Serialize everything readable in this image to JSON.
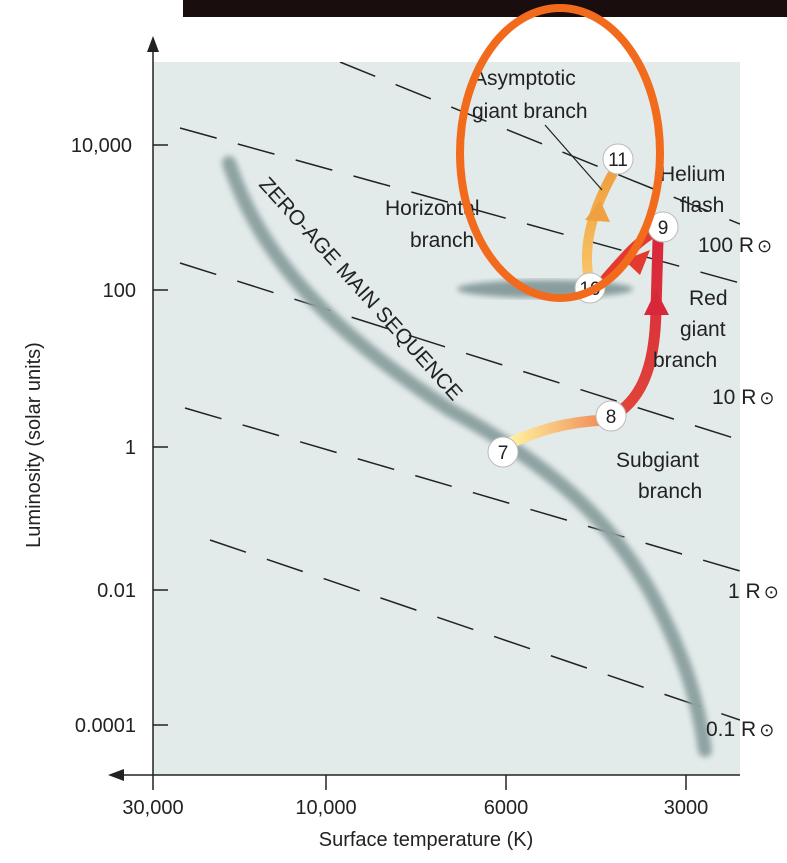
{
  "diagram": {
    "y_axis": {
      "title": "Luminosity (solar units)",
      "ticks": [
        "10,000",
        "100",
        "1",
        "0.01",
        "0.0001"
      ]
    },
    "x_axis": {
      "title": "Surface temperature (K)",
      "ticks": [
        "30,000",
        "10,000",
        "6000",
        "3000"
      ]
    },
    "radius_lines": [
      {
        "label": "100 R",
        "symbol": "⊙"
      },
      {
        "label": "10 R",
        "symbol": "⊙"
      },
      {
        "label": "1 R",
        "symbol": "⊙"
      },
      {
        "label": "0.1 R",
        "symbol": "⊙"
      }
    ],
    "main_sequence_label": "ZERO-AGE MAIN SEQUENCE",
    "annotations": {
      "agb_line1": "Asymptotic",
      "agb_line2": "giant branch",
      "hb_line1": "Horizontal",
      "hb_line2": "branch",
      "flash_line1": "Helium",
      "flash_line2": "flash",
      "rgb_line1": "Red",
      "rgb_line2": "giant",
      "rgb_line3": "branch",
      "sgb_line1": "Subgiant",
      "sgb_line2": "branch"
    },
    "stages": [
      "7",
      "8",
      "9",
      "10",
      "11"
    ],
    "colors": {
      "plot_bg": "#e3eaea",
      "highlight": "#f26b1d",
      "rgb_track": "#e23a2e",
      "agb_track": "#f5b24a",
      "main_sequence": "#8fa3a3"
    }
  }
}
